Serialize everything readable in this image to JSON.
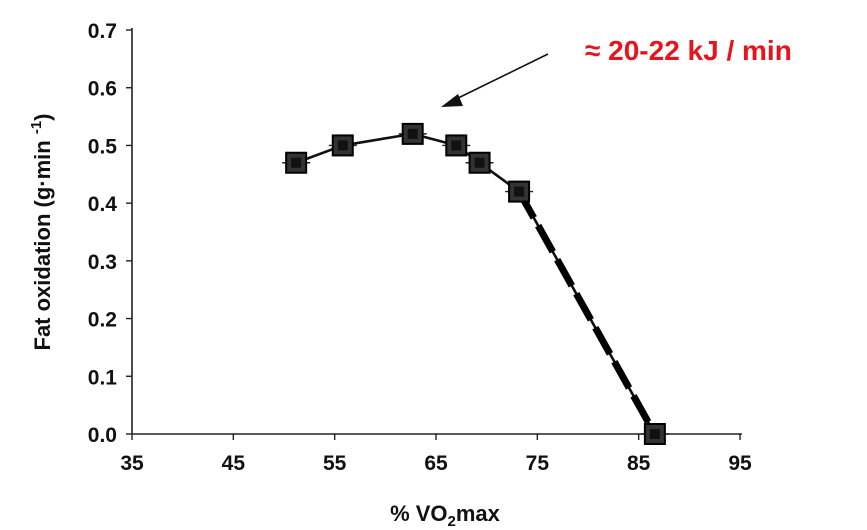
{
  "chart_data": {
    "type": "line",
    "xlabel": "% VO2max",
    "xlabel_parts": {
      "prefix": "% VO",
      "subscript": "2",
      "suffix": "max"
    },
    "ylabel": "Fat oxidation (g·min -1)",
    "ylabel_parts": {
      "main": "Fat oxidation (g·min ",
      "superscript": "-1",
      "close": ")"
    },
    "xlim": [
      35,
      95
    ],
    "ylim": [
      0.0,
      0.7
    ],
    "x_ticks": [
      35,
      45,
      55,
      65,
      75,
      85,
      95
    ],
    "x_tick_labels": [
      "35",
      "45",
      "55",
      "65",
      "75",
      "85",
      "95"
    ],
    "y_ticks": [
      0.0,
      0.1,
      0.2,
      0.3,
      0.4,
      0.5,
      0.6,
      0.7
    ],
    "y_tick_labels": [
      "0.0",
      "0.1",
      "0.2",
      "0.3",
      "0.4",
      "0.5",
      "0.6",
      "0.7"
    ],
    "grid": false,
    "series": [
      {
        "style": "solid",
        "marker": "square",
        "x": [
          51.2,
          55.8,
          62.7,
          67.0,
          69.3,
          73.2,
          86.6
        ],
        "y": [
          0.47,
          0.5,
          0.52,
          0.5,
          0.47,
          0.42,
          0.0
        ]
      },
      {
        "style": "dashed",
        "x": [
          73.2,
          86.6
        ],
        "y": [
          0.42,
          0.0
        ]
      }
    ],
    "annotations": [
      {
        "text": "≈ 20-22 kJ / min",
        "color": "#e8141c",
        "arrow_target": {
          "x": 65,
          "y": 0.565
        }
      }
    ]
  }
}
